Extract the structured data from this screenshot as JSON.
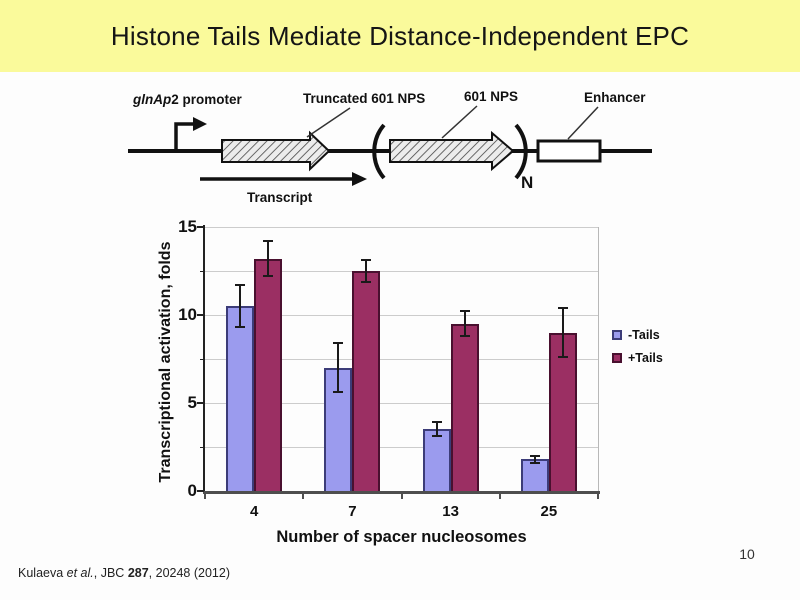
{
  "slide": {
    "title": "Histone Tails Mediate Distance-Independent EPC",
    "page_number": "10",
    "citation": {
      "author": "Kulaeva ",
      "etal": "et al.",
      "mid": ", JBC ",
      "volume": "287",
      "rest": ", 20248 (2012)"
    }
  },
  "diagram": {
    "promoter_label_italic": "glnAp",
    "promoter_label_rest": "2 promoter",
    "truncated_nps_label": "Truncated 601 NPS",
    "nps_label": "601 NPS",
    "repeat_subscript": "N",
    "enhancer_label": "Enhancer",
    "transcript_label": "Transcript"
  },
  "chart_data": {
    "type": "bar",
    "title": "",
    "xlabel": "Number of spacer nucleosomes",
    "ylabel": "Transcriptional activation, folds",
    "categories": [
      "4",
      "7",
      "13",
      "25"
    ],
    "series": [
      {
        "name": "-Tails",
        "color": "#9b9bee",
        "border": "#3c3c78",
        "values": [
          10.5,
          7.0,
          3.5,
          1.8
        ],
        "errors": [
          1.2,
          1.4,
          0.4,
          0.2
        ]
      },
      {
        "name": "+Tails",
        "color": "#9b2f63",
        "border": "#49102f",
        "values": [
          13.2,
          12.5,
          9.5,
          9.0
        ],
        "errors": [
          1.0,
          0.6,
          0.7,
          1.4
        ]
      }
    ],
    "ylim": [
      0,
      15
    ],
    "yticks": [
      0,
      5,
      10,
      15
    ],
    "grid_step": 2.5,
    "grid": true,
    "legend_position": "right"
  },
  "colors": {
    "banner": "#fafa9b",
    "grid": "#cccccc",
    "text": "#111111"
  }
}
